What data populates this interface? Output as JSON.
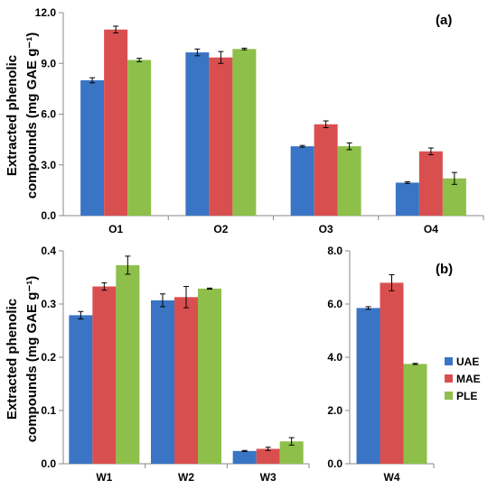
{
  "colors": {
    "UAE": "#3a74c4",
    "MAE": "#d94f4f",
    "PLE": "#8dbf4a",
    "axis": "#888888",
    "errorbar": "#000000"
  },
  "legend": {
    "placement": "right",
    "items": [
      "UAE",
      "MAE",
      "PLE"
    ]
  },
  "chart_data": [
    {
      "type": "bar",
      "panel_label": "(a)",
      "ylabel": [
        "Extracted phenolic",
        "compounds (mg GAE g⁻¹)"
      ],
      "categories": [
        "O1",
        "O2",
        "O3",
        "O4"
      ],
      "ylim": [
        0,
        12
      ],
      "yticks": [
        "0.0",
        "3.0",
        "6.0",
        "9.0",
        "12.0"
      ],
      "series": [
        {
          "name": "UAE",
          "values": [
            8.0,
            9.65,
            4.1,
            1.95
          ],
          "errors": [
            0.15,
            0.2,
            0.05,
            0.05
          ]
        },
        {
          "name": "MAE",
          "values": [
            11.0,
            9.35,
            5.4,
            3.8
          ],
          "errors": [
            0.2,
            0.35,
            0.2,
            0.2
          ]
        },
        {
          "name": "PLE",
          "values": [
            9.2,
            9.85,
            4.1,
            2.2
          ],
          "errors": [
            0.1,
            0.05,
            0.2,
            0.35
          ]
        }
      ]
    },
    {
      "type": "bar",
      "panel_label": "",
      "ylabel": [
        "Extracted phenolic",
        "compounds  (mg GAE g⁻¹)"
      ],
      "categories": [
        "W1",
        "W2",
        "W3"
      ],
      "ylim": [
        0,
        0.4
      ],
      "yticks": [
        "0.0",
        "0.1",
        "0.2",
        "0.3",
        "0.4"
      ],
      "series": [
        {
          "name": "UAE",
          "values": [
            0.279,
            0.307,
            0.024
          ],
          "errors": [
            0.007,
            0.012,
            0.001
          ]
        },
        {
          "name": "MAE",
          "values": [
            0.333,
            0.313,
            0.028
          ],
          "errors": [
            0.007,
            0.02,
            0.003
          ]
        },
        {
          "name": "PLE",
          "values": [
            0.373,
            0.329,
            0.042
          ],
          "errors": [
            0.017,
            0.001,
            0.007
          ]
        }
      ]
    },
    {
      "type": "bar",
      "panel_label": "(b)",
      "ylabel": [],
      "categories": [
        "W4"
      ],
      "ylim": [
        0,
        8
      ],
      "yticks": [
        "0.0",
        "2.0",
        "4.0",
        "6.0",
        "8.0"
      ],
      "series": [
        {
          "name": "UAE",
          "values": [
            5.85
          ],
          "errors": [
            0.05
          ]
        },
        {
          "name": "MAE",
          "values": [
            6.8
          ],
          "errors": [
            0.3
          ]
        },
        {
          "name": "PLE",
          "values": [
            3.75
          ],
          "errors": [
            0.02
          ]
        }
      ]
    }
  ]
}
